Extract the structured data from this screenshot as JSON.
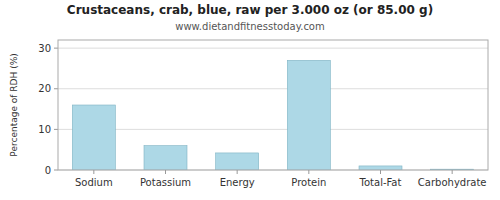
{
  "chart_data": {
    "type": "bar",
    "title": "Crustaceans, crab, blue, raw per 3.000 oz (or 85.00 g)",
    "subtitle": "www.dietandfitnesstoday.com",
    "categories": [
      "Sodium",
      "Potassium",
      "Energy",
      "Protein",
      "Total-Fat",
      "Carbohydrate"
    ],
    "values": [
      16,
      6,
      4.2,
      27,
      1,
      0.2
    ],
    "color": "#add8e6",
    "ylabel": "Percentage of RDH (%)",
    "ylim": [
      0,
      32
    ],
    "yticks": [
      0,
      10,
      20,
      30
    ],
    "grid": true
  }
}
